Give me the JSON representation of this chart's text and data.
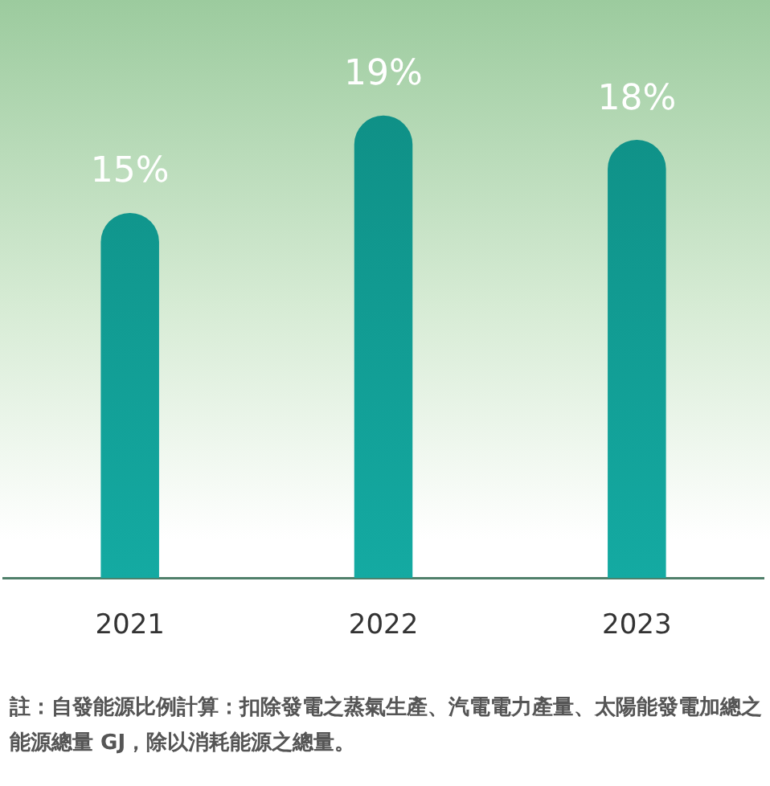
{
  "chart_data": {
    "type": "bar",
    "categories": [
      "2021",
      "2022",
      "2023"
    ],
    "values": [
      15,
      19,
      18
    ],
    "value_labels": [
      "15%",
      "19%",
      "18%"
    ],
    "color": "#0e8a80",
    "grid": false,
    "legend": false,
    "tick_labels": "x",
    "annotations": [
      "註：自發能源比例計算：扣除發電之蒸氣生產、汽電電力產量、太陽能發電加總之能源總量 GJ，除以消耗能源之總量。"
    ]
  }
}
